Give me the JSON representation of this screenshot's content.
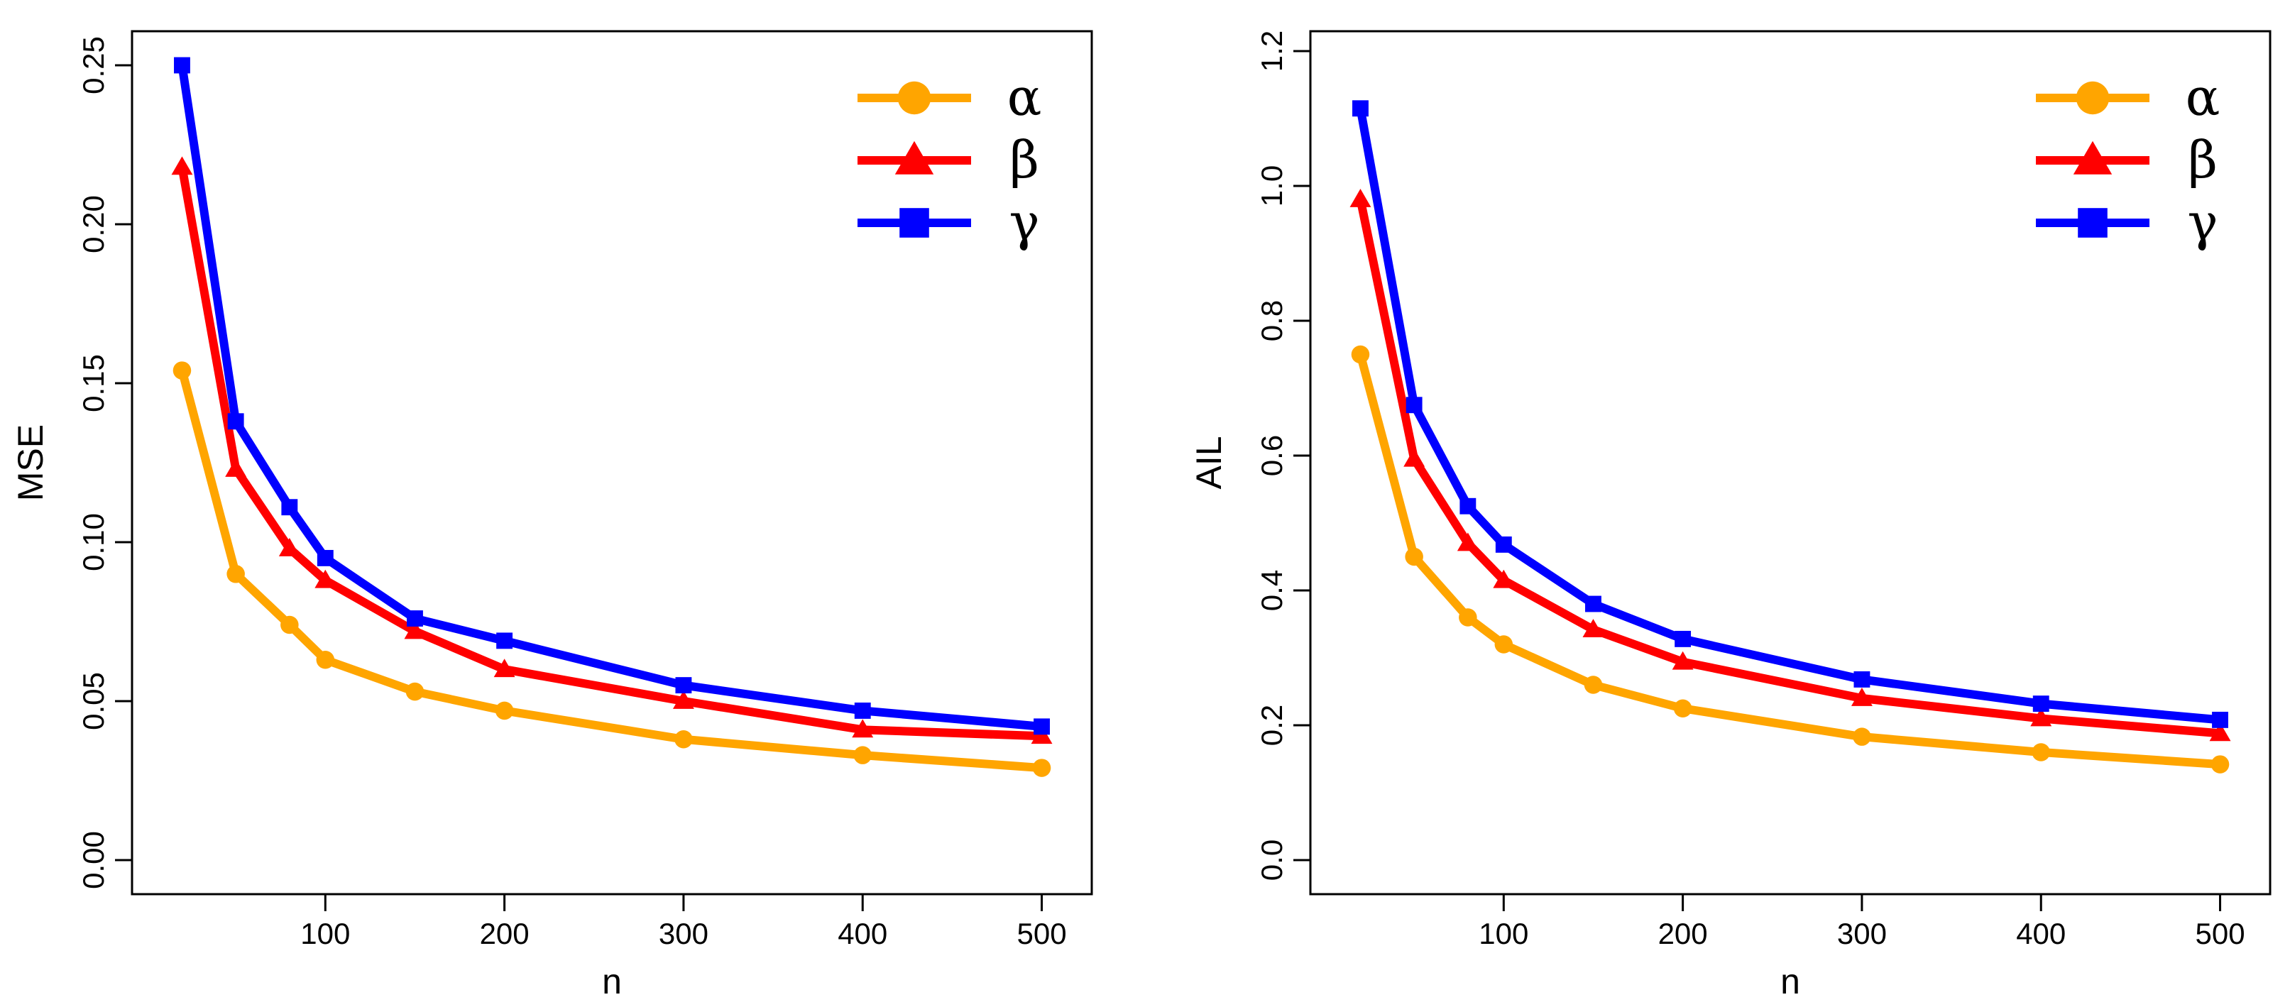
{
  "chart_data": [
    {
      "type": "line",
      "title": "",
      "xlabel": "n",
      "ylabel": "MSE",
      "x": [
        20,
        50,
        80,
        100,
        150,
        200,
        300,
        400,
        500
      ],
      "xlim": [
        0,
        520
      ],
      "ylim": [
        0,
        0.25
      ],
      "xticks": [
        100,
        200,
        300,
        400,
        500
      ],
      "xtick_labels": [
        "100",
        "200",
        "300",
        "400",
        "500"
      ],
      "yticks": [
        0,
        0.05,
        0.1,
        0.15,
        0.2,
        0.25
      ],
      "ytick_labels": [
        "0.00",
        "0.05",
        "0.10",
        "0.15",
        "0.20",
        "0.25"
      ],
      "grid": false,
      "legend_position": "top-right",
      "series": [
        {
          "name": "α",
          "color": "#FFA500",
          "marker": "circle",
          "values": [
            0.154,
            0.09,
            0.074,
            0.063,
            0.053,
            0.047,
            0.038,
            0.033,
            0.029
          ]
        },
        {
          "name": "β",
          "color": "#FF0000",
          "marker": "triangle",
          "values": [
            0.218,
            0.123,
            0.098,
            0.088,
            0.072,
            0.06,
            0.05,
            0.041,
            0.039
          ]
        },
        {
          "name": "γ",
          "color": "#0000FF",
          "marker": "square",
          "values": [
            0.25,
            0.138,
            0.111,
            0.095,
            0.076,
            0.069,
            0.055,
            0.047,
            0.042
          ]
        }
      ]
    },
    {
      "type": "line",
      "title": "",
      "xlabel": "n",
      "ylabel": "AIL",
      "x": [
        20,
        50,
        80,
        100,
        150,
        200,
        300,
        400,
        500
      ],
      "xlim": [
        0,
        520
      ],
      "ylim": [
        0,
        1.2
      ],
      "xticks": [
        100,
        200,
        300,
        400,
        500
      ],
      "xtick_labels": [
        "100",
        "200",
        "300",
        "400",
        "500"
      ],
      "yticks": [
        0,
        0.2,
        0.4,
        0.6,
        0.8,
        1.0,
        1.2
      ],
      "ytick_labels": [
        "0.0",
        "0.2",
        "0.4",
        "0.6",
        "0.8",
        "1.0",
        "1.2"
      ],
      "grid": false,
      "legend_position": "top-right",
      "series": [
        {
          "name": "α",
          "color": "#FFA500",
          "marker": "circle",
          "values": [
            0.75,
            0.45,
            0.36,
            0.32,
            0.26,
            0.225,
            0.183,
            0.16,
            0.142
          ]
        },
        {
          "name": "β",
          "color": "#FF0000",
          "marker": "triangle",
          "values": [
            0.98,
            0.595,
            0.47,
            0.415,
            0.342,
            0.294,
            0.24,
            0.21,
            0.188
          ]
        },
        {
          "name": "γ",
          "color": "#0000FF",
          "marker": "square",
          "values": [
            1.115,
            0.675,
            0.525,
            0.468,
            0.38,
            0.328,
            0.268,
            0.232,
            0.208
          ]
        }
      ]
    }
  ]
}
